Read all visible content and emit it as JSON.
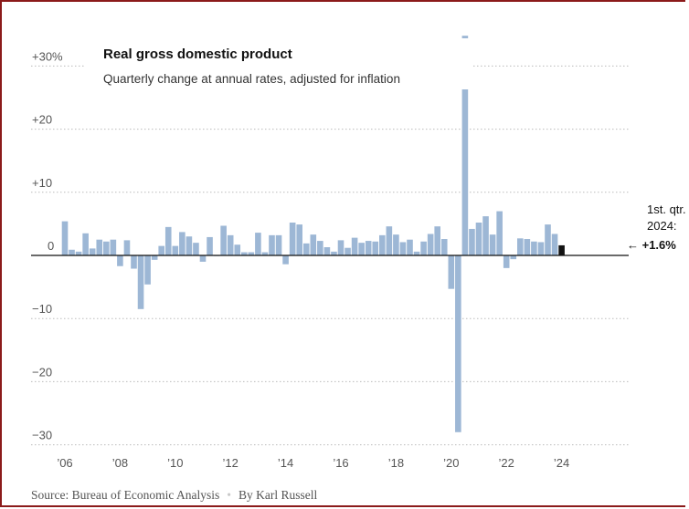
{
  "chart_data": {
    "type": "bar",
    "title": "Real gross domestic product",
    "subtitle": "Quarterly change at annual rates, adjusted for inflation",
    "ylim": [
      -30,
      35
    ],
    "y_ticks": [
      {
        "value": 30,
        "label": "+30%"
      },
      {
        "value": 20,
        "label": "+20"
      },
      {
        "value": 10,
        "label": "+10"
      },
      {
        "value": 0,
        "label": "0"
      },
      {
        "value": -10,
        "label": "−10"
      },
      {
        "value": -20,
        "label": "−20"
      },
      {
        "value": -30,
        "label": "−30"
      }
    ],
    "x_ticks": [
      {
        "quarter_index": 0,
        "label": "’06"
      },
      {
        "quarter_index": 8,
        "label": "’08"
      },
      {
        "quarter_index": 16,
        "label": "’10"
      },
      {
        "quarter_index": 24,
        "label": "’12"
      },
      {
        "quarter_index": 32,
        "label": "’14"
      },
      {
        "quarter_index": 40,
        "label": "’16"
      },
      {
        "quarter_index": 48,
        "label": "’18"
      },
      {
        "quarter_index": 56,
        "label": "’20"
      },
      {
        "quarter_index": 64,
        "label": "’22"
      },
      {
        "quarter_index": 72,
        "label": "’24"
      }
    ],
    "start_quarter": "2006 Q1",
    "end_quarter": "2024 Q1",
    "values": [
      5.4,
      0.9,
      0.6,
      3.5,
      1.1,
      2.5,
      2.2,
      2.5,
      -1.7,
      2.4,
      -2.1,
      -8.5,
      -4.6,
      -0.7,
      1.5,
      4.5,
      1.5,
      3.7,
      3.0,
      2.0,
      -1.0,
      2.9,
      -0.1,
      4.7,
      3.2,
      1.7,
      0.5,
      0.5,
      3.6,
      0.5,
      3.2,
      3.2,
      -1.4,
      5.2,
      4.9,
      1.9,
      3.3,
      2.3,
      1.3,
      0.6,
      2.4,
      1.2,
      2.8,
      2.0,
      2.3,
      2.2,
      3.2,
      4.6,
      3.3,
      2.1,
      2.5,
      0.6,
      2.2,
      3.4,
      4.6,
      2.6,
      -5.3,
      -28.0,
      34.8,
      4.2,
      5.2,
      6.2,
      3.3,
      7.0,
      -2.0,
      -0.6,
      2.7,
      2.6,
      2.2,
      2.1,
      4.9,
      3.4,
      1.6
    ],
    "annotation": {
      "line1": "1st. qtr.",
      "line2": "2024:",
      "value_label": "← +1.6%"
    },
    "colors": {
      "bars": "#9db7d5",
      "highlight": "#121212",
      "grid": "#bbbbbb",
      "baseline": "#121212"
    }
  },
  "footer": {
    "source": "Source: Bureau of Economic Analysis",
    "separator": "•",
    "byline": "By Karl Russell"
  }
}
